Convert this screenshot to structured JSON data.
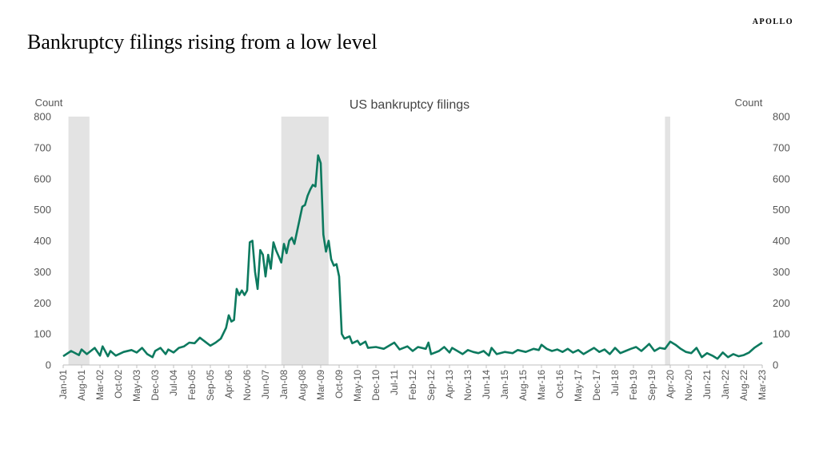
{
  "brand": "APOLLO",
  "headline": "Bankruptcy filings rising from a low level",
  "chart_data": {
    "type": "line",
    "title": "US bankruptcy filings",
    "ylabel_left": "Count",
    "ylabel_right": "Count",
    "ylim": [
      0,
      800
    ],
    "yticks": [
      0,
      100,
      200,
      300,
      400,
      500,
      600,
      700,
      800
    ],
    "x_start": "Jan-01",
    "x_end": "Mar-23",
    "xticks": [
      "Jan-01",
      "Aug-01",
      "Mar-02",
      "Oct-02",
      "May-03",
      "Dec-03",
      "Jul-04",
      "Feb-05",
      "Sep-05",
      "Apr-06",
      "Nov-06",
      "Jun-07",
      "Jan-08",
      "Aug-08",
      "Mar-09",
      "Oct-09",
      "May-10",
      "Dec-10",
      "Jul-11",
      "Feb-12",
      "Sep-12",
      "Apr-13",
      "Nov-13",
      "Jun-14",
      "Jan-15",
      "Aug-15",
      "Mar-16",
      "Oct-16",
      "May-17",
      "Dec-17",
      "Jul-18",
      "Feb-19",
      "Sep-19",
      "Apr-20",
      "Nov-20",
      "Jun-21",
      "Jan-22",
      "Aug-22",
      "Mar-23"
    ],
    "line_color": "#0d7a5f",
    "recession_color": "#e3e3e3",
    "recessions": [
      {
        "start": "Mar-01",
        "end": "Nov-01"
      },
      {
        "start": "Dec-07",
        "end": "Jun-09"
      },
      {
        "start": "Feb-20",
        "end": "Apr-20"
      }
    ],
    "series": [
      {
        "points": [
          [
            "Jan-01",
            28
          ],
          [
            "Apr-01",
            45
          ],
          [
            "Jul-01",
            32
          ],
          [
            "Aug-01",
            50
          ],
          [
            "Oct-01",
            35
          ],
          [
            "Jan-02",
            55
          ],
          [
            "Mar-02",
            30
          ],
          [
            "Apr-02",
            60
          ],
          [
            "Jun-02",
            28
          ],
          [
            "Jul-02",
            45
          ],
          [
            "Sep-02",
            30
          ],
          [
            "Dec-02",
            42
          ],
          [
            "Mar-03",
            48
          ],
          [
            "May-03",
            40
          ],
          [
            "Jul-03",
            55
          ],
          [
            "Sep-03",
            35
          ],
          [
            "Nov-03",
            25
          ],
          [
            "Dec-03",
            45
          ],
          [
            "Feb-04",
            55
          ],
          [
            "Apr-04",
            35
          ],
          [
            "May-04",
            50
          ],
          [
            "Jul-04",
            40
          ],
          [
            "Sep-04",
            55
          ],
          [
            "Nov-04",
            60
          ],
          [
            "Jan-05",
            72
          ],
          [
            "Mar-05",
            70
          ],
          [
            "May-05",
            88
          ],
          [
            "Jul-05",
            75
          ],
          [
            "Sep-05",
            62
          ],
          [
            "Nov-05",
            72
          ],
          [
            "Jan-06",
            85
          ],
          [
            "Mar-06",
            120
          ],
          [
            "Apr-06",
            160
          ],
          [
            "May-06",
            140
          ],
          [
            "Jun-06",
            145
          ],
          [
            "Jul-06",
            245
          ],
          [
            "Aug-06",
            225
          ],
          [
            "Sep-06",
            240
          ],
          [
            "Oct-06",
            225
          ],
          [
            "Nov-06",
            240
          ],
          [
            "Dec-06",
            395
          ],
          [
            "Jan-07",
            400
          ],
          [
            "Feb-07",
            300
          ],
          [
            "Mar-07",
            245
          ],
          [
            "Apr-07",
            370
          ],
          [
            "May-07",
            355
          ],
          [
            "Jun-07",
            285
          ],
          [
            "Jul-07",
            355
          ],
          [
            "Aug-07",
            310
          ],
          [
            "Sep-07",
            395
          ],
          [
            "Oct-07",
            370
          ],
          [
            "Nov-07",
            350
          ],
          [
            "Dec-07",
            330
          ],
          [
            "Jan-08",
            390
          ],
          [
            "Feb-08",
            360
          ],
          [
            "Mar-08",
            400
          ],
          [
            "Apr-08",
            410
          ],
          [
            "May-08",
            390
          ],
          [
            "Jun-08",
            430
          ],
          [
            "Jul-08",
            470
          ],
          [
            "Aug-08",
            510
          ],
          [
            "Sep-08",
            515
          ],
          [
            "Oct-08",
            545
          ],
          [
            "Nov-08",
            565
          ],
          [
            "Dec-08",
            580
          ],
          [
            "Jan-09",
            575
          ],
          [
            "Feb-09",
            675
          ],
          [
            "Mar-09",
            650
          ],
          [
            "Apr-09",
            420
          ],
          [
            "May-09",
            365
          ],
          [
            "Jun-09",
            400
          ],
          [
            "Jul-09",
            340
          ],
          [
            "Aug-09",
            320
          ],
          [
            "Sep-09",
            325
          ],
          [
            "Oct-09",
            285
          ],
          [
            "Nov-09",
            100
          ],
          [
            "Dec-09",
            85
          ],
          [
            "Feb-10",
            92
          ],
          [
            "Mar-10",
            70
          ],
          [
            "May-10",
            78
          ],
          [
            "Jun-10",
            65
          ],
          [
            "Aug-10",
            75
          ],
          [
            "Sep-10",
            55
          ],
          [
            "Dec-10",
            58
          ],
          [
            "Mar-11",
            52
          ],
          [
            "Jul-11",
            72
          ],
          [
            "Sep-11",
            50
          ],
          [
            "Dec-11",
            60
          ],
          [
            "Feb-12",
            45
          ],
          [
            "Apr-12",
            58
          ],
          [
            "Jul-12",
            52
          ],
          [
            "Aug-12",
            72
          ],
          [
            "Sep-12",
            35
          ],
          [
            "Dec-12",
            45
          ],
          [
            "Feb-13",
            58
          ],
          [
            "Apr-13",
            40
          ],
          [
            "May-13",
            55
          ],
          [
            "Jul-13",
            45
          ],
          [
            "Sep-13",
            35
          ],
          [
            "Nov-13",
            48
          ],
          [
            "Jan-14",
            42
          ],
          [
            "Mar-14",
            38
          ],
          [
            "May-14",
            45
          ],
          [
            "Jul-14",
            30
          ],
          [
            "Aug-14",
            55
          ],
          [
            "Oct-14",
            35
          ],
          [
            "Jan-15",
            42
          ],
          [
            "Apr-15",
            38
          ],
          [
            "Jun-15",
            48
          ],
          [
            "Sep-15",
            42
          ],
          [
            "Dec-15",
            52
          ],
          [
            "Feb-16",
            48
          ],
          [
            "Mar-16",
            65
          ],
          [
            "May-16",
            52
          ],
          [
            "Jul-16",
            45
          ],
          [
            "Sep-16",
            50
          ],
          [
            "Nov-16",
            42
          ],
          [
            "Jan-17",
            52
          ],
          [
            "Mar-17",
            40
          ],
          [
            "May-17",
            48
          ],
          [
            "Jul-17",
            35
          ],
          [
            "Sep-17",
            45
          ],
          [
            "Nov-17",
            55
          ],
          [
            "Jan-18",
            42
          ],
          [
            "Mar-18",
            50
          ],
          [
            "May-18",
            35
          ],
          [
            "Jul-18",
            55
          ],
          [
            "Sep-18",
            38
          ],
          [
            "Nov-18",
            45
          ],
          [
            "Jan-19",
            52
          ],
          [
            "Mar-19",
            58
          ],
          [
            "May-19",
            45
          ],
          [
            "Jul-19",
            60
          ],
          [
            "Aug-19",
            68
          ],
          [
            "Oct-19",
            45
          ],
          [
            "Dec-19",
            55
          ],
          [
            "Feb-20",
            52
          ],
          [
            "Apr-20",
            75
          ],
          [
            "Jun-20",
            65
          ],
          [
            "Aug-20",
            52
          ],
          [
            "Oct-20",
            42
          ],
          [
            "Dec-20",
            38
          ],
          [
            "Feb-21",
            55
          ],
          [
            "Apr-21",
            25
          ],
          [
            "Jun-21",
            38
          ],
          [
            "Aug-21",
            30
          ],
          [
            "Oct-21",
            20
          ],
          [
            "Dec-21",
            40
          ],
          [
            "Feb-22",
            25
          ],
          [
            "Apr-22",
            35
          ],
          [
            "Jun-22",
            28
          ],
          [
            "Aug-22",
            32
          ],
          [
            "Oct-22",
            40
          ],
          [
            "Dec-22",
            55
          ],
          [
            "Mar-23",
            72
          ]
        ]
      }
    ]
  }
}
